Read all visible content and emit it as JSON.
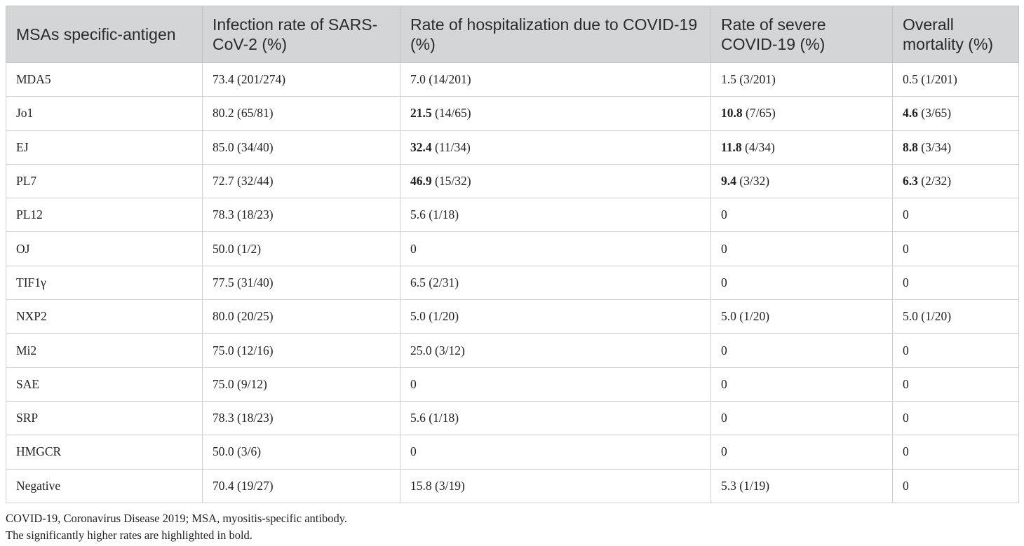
{
  "table": {
    "header": [
      "MSAs specific-antigen",
      "Infection rate of SARS-CoV-2 (%)",
      "Rate of hospitalization due to COVID-19 (%)",
      "Rate of severe COVID-19 (%)",
      "Overall mortality (%)"
    ],
    "rows": [
      [
        "MDA5",
        "73.4 (201/274)",
        "7.0 (14/201)",
        "1.5 (3/201)",
        "0.5 (1/201)"
      ],
      [
        "Jo1",
        "80.2 (65/81)",
        {
          "bold": "21.5",
          "rest": "(14/65)"
        },
        {
          "bold": "10.8",
          "rest": "(7/65)"
        },
        {
          "bold": "4.6",
          "rest": "(3/65)"
        }
      ],
      [
        "EJ",
        "85.0 (34/40)",
        {
          "bold": "32.4",
          "rest": "(11/34)"
        },
        {
          "bold": "11.8",
          "rest": "(4/34)"
        },
        {
          "bold": "8.8",
          "rest": "(3/34)"
        }
      ],
      [
        "PL7",
        "72.7 (32/44)",
        {
          "bold": "46.9",
          "rest": "(15/32)"
        },
        {
          "bold": "9.4",
          "rest": "(3/32)"
        },
        {
          "bold": "6.3",
          "rest": "(2/32)"
        }
      ],
      [
        "PL12",
        "78.3 (18/23)",
        "5.6 (1/18)",
        "0",
        "0"
      ],
      [
        "OJ",
        "50.0 (1/2)",
        "0",
        "0",
        "0"
      ],
      [
        "TIF1γ",
        "77.5 (31/40)",
        "6.5 (2/31)",
        "0",
        "0"
      ],
      [
        "NXP2",
        "80.0 (20/25)",
        "5.0 (1/20)",
        "5.0 (1/20)",
        "5.0 (1/20)"
      ],
      [
        "Mi2",
        "75.0 (12/16)",
        "25.0 (3/12)",
        "0",
        "0"
      ],
      [
        "SAE",
        "75.0 (9/12)",
        "0",
        "0",
        "0"
      ],
      [
        "SRP",
        "78.3 (18/23)",
        "5.6 (1/18)",
        "0",
        "0"
      ],
      [
        "HMGCR",
        "50.0 (3/6)",
        "0",
        "0",
        "0"
      ],
      [
        "Negative",
        "70.4 (19/27)",
        "15.8 (3/19)",
        "5.3 (1/19)",
        "0"
      ]
    ]
  },
  "footnotes": [
    "COVID-19, Coronavirus Disease 2019; MSA, myositis-specific antibody.",
    "The significantly higher rates are highlighted in bold."
  ]
}
